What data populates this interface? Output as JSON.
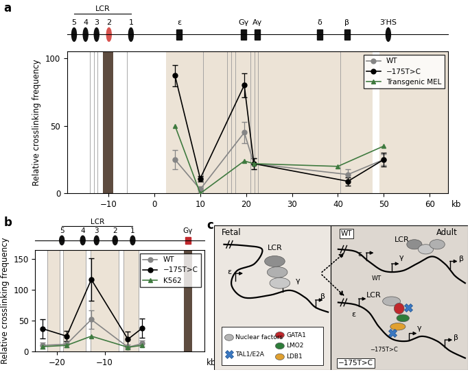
{
  "chart_data": [
    {
      "type": "line",
      "panel_label": "a",
      "ylabel": "Relative crosslinking frequency",
      "xlabel": "kb",
      "xlim": [
        -19,
        64
      ],
      "xticks": [
        {
          "value": -10,
          "label": "−10"
        },
        0,
        10,
        20,
        30,
        40,
        50,
        60
      ],
      "ylim": [
        0,
        105
      ],
      "yticks": [
        0,
        50,
        100
      ],
      "legend": "upper right",
      "series": [
        {
          "name": "WT",
          "color": "#858585",
          "marker": "circle",
          "x": [
            4.5,
            10,
            19.6,
            21.7,
            42.2,
            50
          ],
          "values": [
            25,
            3,
            45,
            22,
            14,
            25
          ],
          "errors": [
            7,
            2,
            8,
            4,
            4,
            4
          ]
        },
        {
          "name": "−175T>C",
          "color": "#000000",
          "marker": "circle",
          "x": [
            4.5,
            10,
            19.6,
            21.7,
            42.2,
            50
          ],
          "values": [
            87,
            11,
            80,
            22,
            9,
            25
          ],
          "errors": [
            8,
            2,
            9,
            4,
            3,
            5
          ]
        },
        {
          "name": "Transgenic MEL",
          "color": "#3f7a3f",
          "marker": "triangle",
          "x": [
            4.5,
            10,
            19.6,
            21.7,
            40,
            50
          ],
          "values": [
            50,
            0,
            24,
            22,
            20,
            35
          ]
        }
      ],
      "anchor_fragment": [
        -11.2,
        -9
      ],
      "shaded_regions": [
        [
          2.5,
          47.5
        ],
        [
          49,
          64
        ]
      ],
      "fragment_boundaries": [
        -14,
        -13.2,
        -12.4,
        -6,
        10.6,
        15.8,
        16.8,
        17.6,
        21,
        21.8,
        22.6,
        40.6
      ],
      "map": {
        "group_label": "LCR",
        "group_range": [
          -17.5,
          -5.1
        ],
        "elements": [
          {
            "label": "5",
            "x": -17.5,
            "kind": "hs"
          },
          {
            "label": "4",
            "x": -15,
            "kind": "hs"
          },
          {
            "label": "3",
            "x": -12.6,
            "kind": "hs"
          },
          {
            "label": "2",
            "x": -9.9,
            "kind": "hs",
            "color": "#d9534f"
          },
          {
            "label": "1",
            "x": -5.1,
            "kind": "hs"
          },
          {
            "label": "ε",
            "x": 5.4,
            "kind": "gene"
          },
          {
            "label": "Gγ",
            "x": 19.4,
            "kind": "gene"
          },
          {
            "label": "Aγ",
            "x": 22.5,
            "kind": "gene"
          },
          {
            "label": "δ",
            "x": 36,
            "kind": "gene"
          },
          {
            "label": "β",
            "x": 42,
            "kind": "gene"
          },
          {
            "label": "3′HS",
            "x": 51,
            "kind": "hs"
          }
        ]
      }
    },
    {
      "type": "line",
      "panel_label": "b",
      "ylabel": "Relative crosslinking frequency",
      "xlabel": "kb",
      "xlim": [
        -24.6,
        11
      ],
      "xticks": [
        {
          "value": -20,
          "label": "−20"
        },
        {
          "value": -10,
          "label": "−10"
        }
      ],
      "ylim": [
        0,
        165
      ],
      "yticks": [
        0,
        50,
        100,
        150
      ],
      "legend": "upper right",
      "series": [
        {
          "name": "WT",
          "color": "#858585",
          "marker": "circle",
          "x": [
            -23,
            -18,
            -12.8,
            -5.1,
            -2.1
          ],
          "values": [
            10,
            12,
            52,
            7,
            13
          ],
          "errors": [
            5,
            5,
            15,
            4,
            5
          ]
        },
        {
          "name": "−175T>C",
          "color": "#000000",
          "marker": "circle",
          "x": [
            -23,
            -18,
            -12.8,
            -5.1,
            -2.1
          ],
          "values": [
            37,
            25,
            117,
            20,
            38
          ],
          "errors": [
            16,
            8,
            35,
            12,
            16
          ]
        },
        {
          "name": "K562",
          "color": "#3f7a3f",
          "marker": "triangle",
          "x": [
            -23,
            -18,
            -12.8,
            -5.1,
            -2.1
          ],
          "values": [
            8,
            10,
            25,
            7,
            10
          ]
        }
      ],
      "anchor_fragment": [
        6.7,
        8.4
      ],
      "shaded_regions": [
        [
          -22,
          -19.5
        ],
        [
          -18.8,
          -14
        ],
        [
          -13,
          -7
        ],
        [
          -6,
          -2.8
        ]
      ],
      "fragment_boundaries": [
        -22,
        -19.5,
        -18.8,
        -14,
        -13,
        -7,
        -6,
        -2.8
      ],
      "map": {
        "group_label": "LCR",
        "group_range": [
          -19,
          -4.1
        ],
        "elements": [
          {
            "label": "5",
            "x": -19,
            "kind": "hs"
          },
          {
            "label": "4",
            "x": -14.6,
            "kind": "hs"
          },
          {
            "label": "3",
            "x": -11.7,
            "kind": "hs"
          },
          {
            "label": "2",
            "x": -7.8,
            "kind": "hs"
          },
          {
            "label": "1",
            "x": -4.1,
            "kind": "hs"
          },
          {
            "label": "Gγ",
            "x": 7.5,
            "kind": "gene",
            "color": "#c0282d"
          }
        ]
      }
    }
  ],
  "diagram": {
    "panel_label": "c",
    "fetal": {
      "title": "Fetal",
      "lcr": "LCR",
      "genes": [
        "ε",
        "γ",
        "β"
      ]
    },
    "adult": {
      "title": "Adult",
      "wt": {
        "tag": "WT",
        "lcr": "LCR",
        "genes": [
          "ε",
          "γ",
          "β"
        ],
        "promoter_label": "WT"
      },
      "mutant": {
        "tag": "−175T>C",
        "lcr": "LCR",
        "genes": [
          "ε",
          "γ",
          "β"
        ],
        "promoter_label": "−175T>C"
      }
    },
    "legend": [
      {
        "label": "Nuclear factors",
        "color": "#b5b5b5",
        "shape": "ellipse"
      },
      {
        "label": "GATA1",
        "color": "#c0282d",
        "shape": "ellipse"
      },
      {
        "label": "TAL1/E2A",
        "color": "#3a78c2",
        "shape": "cross"
      },
      {
        "label": "LMO2",
        "color": "#2e7d3a",
        "shape": "ellipse"
      },
      {
        "label": "LDB1",
        "color": "#e0a030",
        "shape": "ellipse"
      }
    ]
  }
}
